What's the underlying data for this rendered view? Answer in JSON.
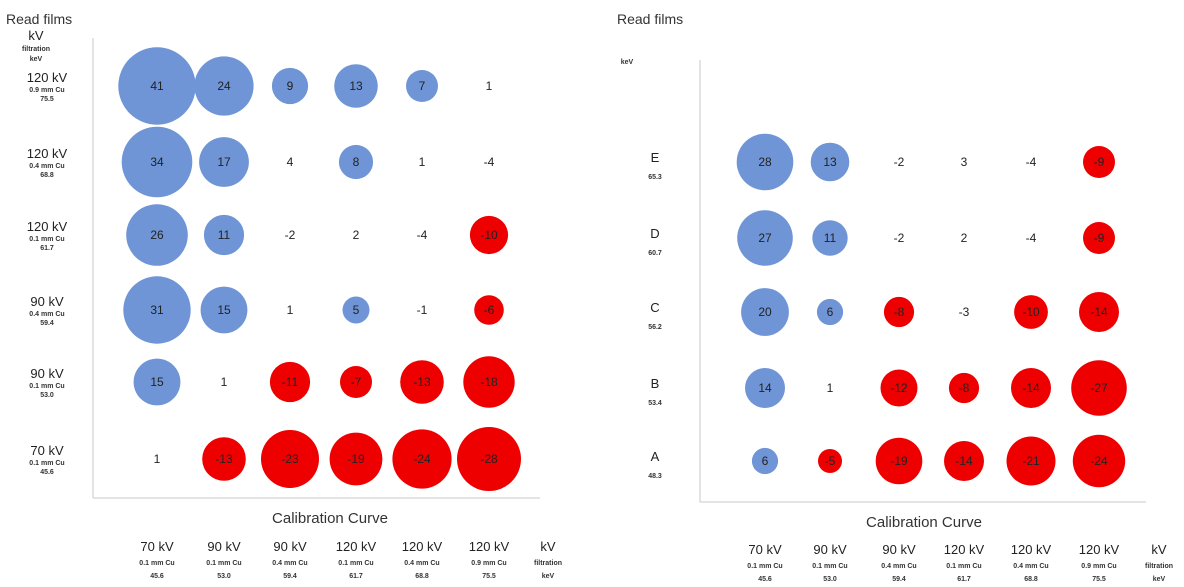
{
  "chart_data": [
    {
      "type": "scatter",
      "subtype": "bubble-matrix",
      "title": "",
      "ylabel": "Read films",
      "ylabel_sub": [
        "kV",
        "filtration",
        "keV"
      ],
      "xlabel": "Calibration Curve",
      "x_header": [
        "kV",
        "filtration",
        "keV"
      ],
      "rows": [
        {
          "kv": "120 kV",
          "filt": "0.9 mm Cu",
          "kev": "75.5"
        },
        {
          "kv": "120 kV",
          "filt": "0.4 mm Cu",
          "kev": "68.8"
        },
        {
          "kv": "120 kV",
          "filt": "0.1 mm Cu",
          "kev": "61.7"
        },
        {
          "kv": "90 kV",
          "filt": "0.4 mm Cu",
          "kev": "59.4"
        },
        {
          "kv": "90 kV",
          "filt": "0.1 mm Cu",
          "kev": "53.0"
        },
        {
          "kv": "70 kV",
          "filt": "0.1 mm Cu",
          "kev": "45.6"
        }
      ],
      "columns": [
        {
          "kv": "70 kV",
          "filt": "0.1 mm Cu",
          "kev": "45.6"
        },
        {
          "kv": "90 kV",
          "filt": "0.1 mm Cu",
          "kev": "53.0"
        },
        {
          "kv": "90 kV",
          "filt": "0.4 mm Cu",
          "kev": "59.4"
        },
        {
          "kv": "120 kV",
          "filt": "0.1 mm Cu",
          "kev": "61.7"
        },
        {
          "kv": "120 kV",
          "filt": "0.4 mm Cu",
          "kev": "68.8"
        },
        {
          "kv": "120 kV",
          "filt": "0.9 mm Cu",
          "kev": "75.5"
        }
      ],
      "values": [
        [
          41,
          24,
          9,
          13,
          7,
          1
        ],
        [
          34,
          17,
          4,
          8,
          1,
          -4
        ],
        [
          26,
          11,
          -2,
          2,
          -4,
          -10
        ],
        [
          31,
          15,
          1,
          5,
          -1,
          -6
        ],
        [
          15,
          1,
          -11,
          -7,
          -13,
          -18
        ],
        [
          1,
          -13,
          -23,
          -19,
          -24,
          -28
        ]
      ],
      "colors": {
        "positive": "#6f95d6",
        "negative": "#ee0000"
      }
    },
    {
      "type": "scatter",
      "subtype": "bubble-matrix",
      "title": "",
      "ylabel": "Read films",
      "ylabel_sub": [
        "keV"
      ],
      "xlabel": "Calibration Curve",
      "x_header": [
        "kV",
        "filtration",
        "keV"
      ],
      "rows": [
        {
          "kv": "E",
          "filt": "",
          "kev": "65.3"
        },
        {
          "kv": "D",
          "filt": "",
          "kev": "60.7"
        },
        {
          "kv": "C",
          "filt": "",
          "kev": "56.2"
        },
        {
          "kv": "B",
          "filt": "",
          "kev": "53.4"
        },
        {
          "kv": "A",
          "filt": "",
          "kev": "48.3"
        }
      ],
      "columns": [
        {
          "kv": "70 kV",
          "filt": "0.1 mm Cu",
          "kev": "45.6"
        },
        {
          "kv": "90 kV",
          "filt": "0.1 mm Cu",
          "kev": "53.0"
        },
        {
          "kv": "90 kV",
          "filt": "0.4 mm Cu",
          "kev": "59.4"
        },
        {
          "kv": "120 kV",
          "filt": "0.1 mm Cu",
          "kev": "61.7"
        },
        {
          "kv": "120 kV",
          "filt": "0.4 mm Cu",
          "kev": "68.8"
        },
        {
          "kv": "120 kV",
          "filt": "0.9 mm Cu",
          "kev": "75.5"
        }
      ],
      "values": [
        [
          28,
          13,
          -2,
          3,
          -4,
          -9
        ],
        [
          27,
          11,
          -2,
          2,
          -4,
          -9
        ],
        [
          20,
          6,
          -8,
          -3,
          -10,
          -14
        ],
        [
          14,
          1,
          -12,
          -8,
          -14,
          -27
        ],
        [
          6,
          -5,
          -19,
          -14,
          -21,
          -24
        ]
      ],
      "colors": {
        "positive": "#6f95d6",
        "negative": "#ee0000"
      }
    }
  ]
}
